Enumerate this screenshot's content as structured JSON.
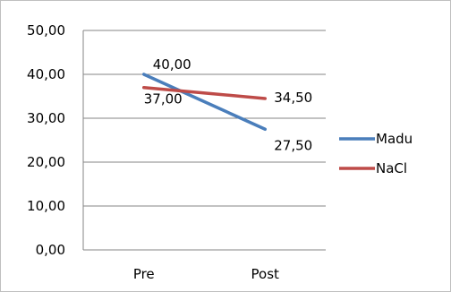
{
  "chart_data": {
    "type": "line",
    "categories": [
      "Pre",
      "Post"
    ],
    "series": [
      {
        "name": "Madu",
        "values": [
          40.0,
          27.5
        ],
        "color": "#4a7ebb",
        "labels": [
          "40,00",
          "27,50"
        ]
      },
      {
        "name": "NaCl",
        "values": [
          37.0,
          34.5
        ],
        "color": "#be4b48",
        "labels": [
          "37,00",
          "34,50"
        ]
      }
    ],
    "ylim": [
      0,
      50
    ],
    "yticks": [
      0,
      10,
      20,
      30,
      40,
      50
    ],
    "ytick_labels": [
      "0,00",
      "10,00",
      "20,00",
      "30,00",
      "40,00",
      "50,00"
    ],
    "grid": true,
    "legend": "right",
    "title": "",
    "xlabel": "",
    "ylabel": ""
  }
}
